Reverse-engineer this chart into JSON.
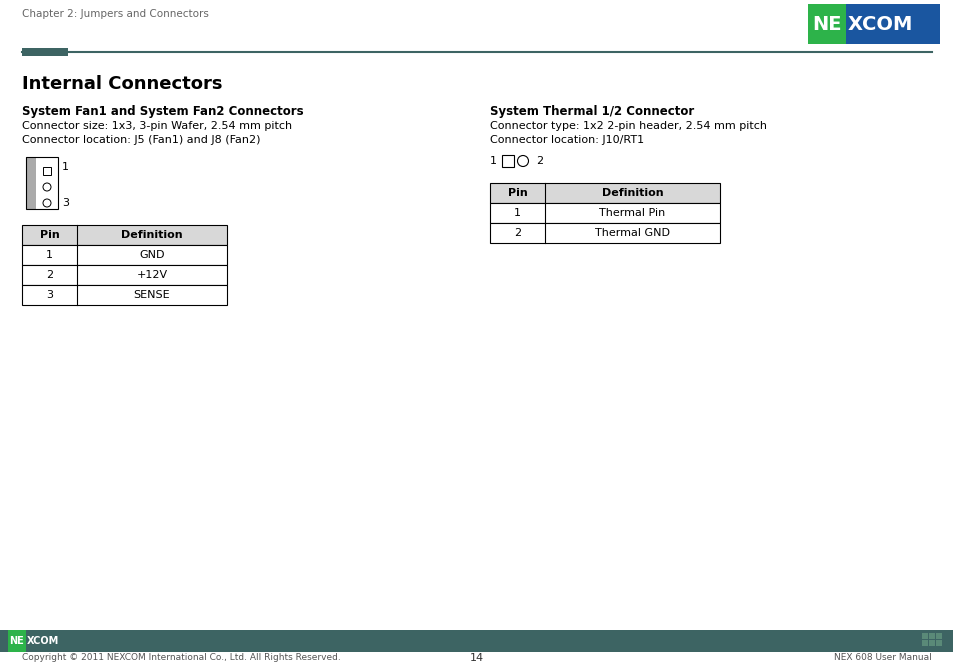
{
  "page_header_text": "Chapter 2: Jumpers and Connectors",
  "header_line_color": "#3d6463",
  "header_block_color": "#3d6463",
  "bg_color": "#ffffff",
  "main_title": "Internal Connectors",
  "left_section_title": "System Fan1 and System Fan2 Connectors",
  "left_line1": "Connector size: 1x3, 3-pin Wafer, 2.54 mm pitch",
  "left_line2": "Connector location: J5 (Fan1) and J8 (Fan2)",
  "left_table_headers": [
    "Pin",
    "Definition"
  ],
  "left_table_rows": [
    [
      "1",
      "GND"
    ],
    [
      "2",
      "+12V"
    ],
    [
      "3",
      "SENSE"
    ]
  ],
  "right_section_title": "System Thermal 1/2 Connector",
  "right_line1": "Connector type: 1x2 2-pin header, 2.54 mm pitch",
  "right_line2": "Connector location: J10/RT1",
  "right_table_headers": [
    "Pin",
    "Definition"
  ],
  "right_table_rows": [
    [
      "1",
      "Thermal Pin"
    ],
    [
      "2",
      "Thermal GND"
    ]
  ],
  "footer_bar_color": "#3d6463",
  "footer_text_left": "Copyright © 2011 NEXCOM International Co., Ltd. All Rights Reserved.",
  "footer_text_center": "14",
  "footer_text_right": "NEX 608 User Manual",
  "nexcom_logo_green": "#2db34a",
  "nexcom_logo_blue": "#1a56a0",
  "table_border_color": "#000000",
  "table_header_bg": "#d8d8d8",
  "text_color": "#000000",
  "gray_text": "#555555",
  "connector_gray": "#888888"
}
